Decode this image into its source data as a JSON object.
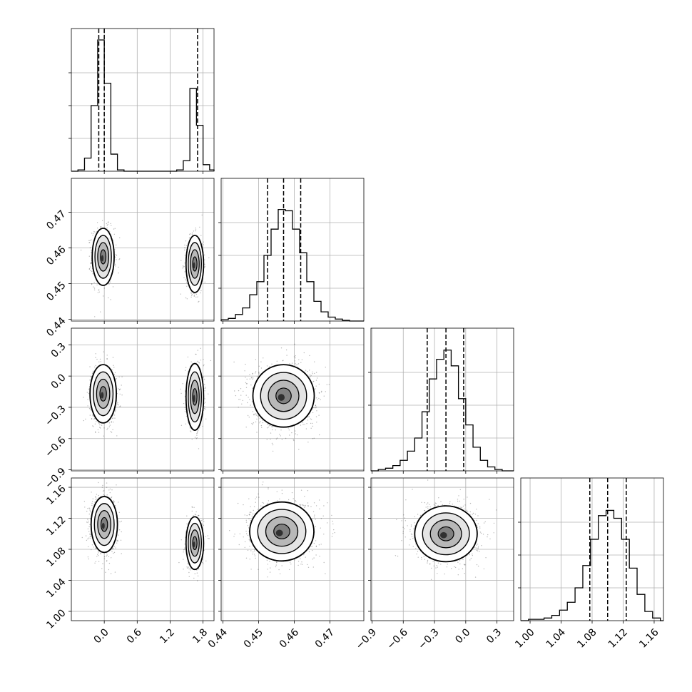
{
  "chart_data": {
    "type": "corner",
    "parameters": [
      {
        "index": 0,
        "range": [
          -0.6,
          2.0
        ],
        "ticks": [
          0.0,
          0.6,
          1.2,
          1.8
        ],
        "tick_labels": [
          "0.0",
          "0.6",
          "1.2",
          "1.8"
        ],
        "quantiles": [
          -0.1,
          0.0,
          1.7
        ],
        "hist_top": 1.0
      },
      {
        "index": 1,
        "range": [
          0.4395,
          0.4795
        ],
        "ticks": [
          0.44,
          0.45,
          0.46,
          0.47
        ],
        "tick_labels": [
          "0.44",
          "0.45",
          "0.46",
          "0.47"
        ],
        "quantiles": [
          0.4525,
          0.457,
          0.4618
        ],
        "hist_top": 1.0
      },
      {
        "index": 2,
        "range": [
          -0.91,
          0.46
        ],
        "ticks": [
          -0.9,
          -0.6,
          -0.3,
          0.0,
          0.3
        ],
        "tick_labels": [
          "−0.9",
          "−0.6",
          "−0.3",
          "0.0",
          "0.3"
        ],
        "quantiles": [
          -0.37,
          -0.19,
          -0.02
        ],
        "hist_top": 1.0
      },
      {
        "index": 3,
        "range": [
          0.988,
          1.172
        ],
        "ticks": [
          1.0,
          1.04,
          1.08,
          1.12,
          1.16
        ],
        "tick_labels": [
          "1.00",
          "1.04",
          "1.08",
          "1.12",
          "1.16"
        ],
        "quantiles": [
          1.077,
          1.1,
          1.124
        ],
        "hist_top": 1.0
      }
    ],
    "histograms": [
      {
        "param": 0,
        "bins": [
          [
            -0.6,
            -0.48,
            0
          ],
          [
            -0.48,
            -0.36,
            0.01
          ],
          [
            -0.36,
            -0.24,
            0.1
          ],
          [
            -0.24,
            -0.12,
            0.5
          ],
          [
            -0.12,
            0.0,
            1.0
          ],
          [
            0.0,
            0.12,
            0.67
          ],
          [
            0.12,
            0.24,
            0.13
          ],
          [
            0.24,
            0.36,
            0.01
          ],
          [
            0.36,
            1.32,
            0
          ],
          [
            1.32,
            1.44,
            0.01
          ],
          [
            1.44,
            1.56,
            0.08
          ],
          [
            1.56,
            1.68,
            0.63
          ],
          [
            1.68,
            1.8,
            0.35
          ],
          [
            1.8,
            1.92,
            0.05
          ],
          [
            1.92,
            2.0,
            0.01
          ]
        ]
      },
      {
        "param": 1,
        "bins": [
          [
            0.4395,
            0.4415,
            0.01
          ],
          [
            0.4415,
            0.4435,
            0.02
          ],
          [
            0.4435,
            0.4455,
            0.05
          ],
          [
            0.4455,
            0.4475,
            0.1
          ],
          [
            0.4475,
            0.4495,
            0.2
          ],
          [
            0.4495,
            0.4515,
            0.3
          ],
          [
            0.4515,
            0.4535,
            0.5
          ],
          [
            0.4535,
            0.4555,
            0.7
          ],
          [
            0.4555,
            0.4575,
            0.85
          ],
          [
            0.4575,
            0.4595,
            0.84
          ],
          [
            0.4595,
            0.4615,
            0.7
          ],
          [
            0.4615,
            0.4635,
            0.52
          ],
          [
            0.4635,
            0.4655,
            0.3
          ],
          [
            0.4655,
            0.4675,
            0.15
          ],
          [
            0.4675,
            0.4695,
            0.07
          ],
          [
            0.4695,
            0.4715,
            0.03
          ],
          [
            0.4715,
            0.4735,
            0.015
          ],
          [
            0.4735,
            0.4755,
            0.005
          ],
          [
            0.4755,
            0.4795,
            0
          ]
        ]
      },
      {
        "param": 2,
        "bins": [
          [
            -0.91,
            -0.84,
            0
          ],
          [
            -0.84,
            -0.77,
            0.01
          ],
          [
            -0.77,
            -0.7,
            0.02
          ],
          [
            -0.7,
            -0.63,
            0.04
          ],
          [
            -0.63,
            -0.56,
            0.08
          ],
          [
            -0.56,
            -0.49,
            0.15
          ],
          [
            -0.49,
            -0.42,
            0.25
          ],
          [
            -0.42,
            -0.35,
            0.45
          ],
          [
            -0.35,
            -0.28,
            0.7
          ],
          [
            -0.28,
            -0.21,
            0.85
          ],
          [
            -0.21,
            -0.14,
            0.92
          ],
          [
            -0.14,
            -0.07,
            0.8
          ],
          [
            -0.07,
            0.0,
            0.55
          ],
          [
            0.0,
            0.07,
            0.35
          ],
          [
            0.07,
            0.14,
            0.18
          ],
          [
            0.14,
            0.21,
            0.08
          ],
          [
            0.21,
            0.28,
            0.03
          ],
          [
            0.28,
            0.35,
            0.01
          ],
          [
            0.35,
            0.46,
            0
          ]
        ]
      },
      {
        "param": 3,
        "bins": [
          [
            0.988,
            0.998,
            0
          ],
          [
            0.998,
            1.008,
            0.01
          ],
          [
            1.008,
            1.018,
            0.01
          ],
          [
            1.018,
            1.028,
            0.02
          ],
          [
            1.028,
            1.038,
            0.04
          ],
          [
            1.038,
            1.048,
            0.08
          ],
          [
            1.048,
            1.058,
            0.14
          ],
          [
            1.058,
            1.068,
            0.25
          ],
          [
            1.068,
            1.078,
            0.42
          ],
          [
            1.078,
            1.088,
            0.62
          ],
          [
            1.088,
            1.098,
            0.8
          ],
          [
            1.098,
            1.108,
            0.84
          ],
          [
            1.108,
            1.118,
            0.78
          ],
          [
            1.118,
            1.128,
            0.62
          ],
          [
            1.128,
            1.138,
            0.4
          ],
          [
            1.138,
            1.148,
            0.2
          ],
          [
            1.148,
            1.158,
            0.07
          ],
          [
            1.158,
            1.168,
            0.02
          ],
          [
            1.168,
            1.172,
            0
          ]
        ]
      }
    ],
    "clusters_2d": [
      {
        "x": 0,
        "y": 1,
        "blobs": [
          {
            "cx": -0.02,
            "cy": 0.4575,
            "sx": 0.1,
            "sy": 0.004,
            "w": 0.6
          },
          {
            "cx": 1.65,
            "cy": 0.4555,
            "sx": 0.08,
            "sy": 0.004,
            "w": 0.4
          }
        ]
      },
      {
        "x": 0,
        "y": 2,
        "blobs": [
          {
            "cx": -0.02,
            "cy": -0.17,
            "sx": 0.12,
            "sy": 0.14,
            "w": 0.6
          },
          {
            "cx": 1.65,
            "cy": -0.2,
            "sx": 0.08,
            "sy": 0.16,
            "w": 0.4
          }
        ]
      },
      {
        "x": 0,
        "y": 3,
        "blobs": [
          {
            "cx": 0.0,
            "cy": 1.112,
            "sx": 0.12,
            "sy": 0.018,
            "w": 0.6
          },
          {
            "cx": 1.65,
            "cy": 1.088,
            "sx": 0.08,
            "sy": 0.017,
            "w": 0.4
          }
        ]
      },
      {
        "x": 1,
        "y": 2,
        "blobs": [
          {
            "cx": 0.457,
            "cy": -0.19,
            "sx": 0.0043,
            "sy": 0.15,
            "w": 1.0
          }
        ]
      },
      {
        "x": 1,
        "y": 3,
        "blobs": [
          {
            "cx": 0.4565,
            "cy": 1.103,
            "sx": 0.0045,
            "sy": 0.019,
            "w": 1.0
          }
        ]
      },
      {
        "x": 2,
        "y": 3,
        "blobs": [
          {
            "cx": -0.19,
            "cy": 1.1,
            "sx": 0.15,
            "sy": 0.018,
            "w": 1.0
          }
        ]
      }
    ]
  }
}
